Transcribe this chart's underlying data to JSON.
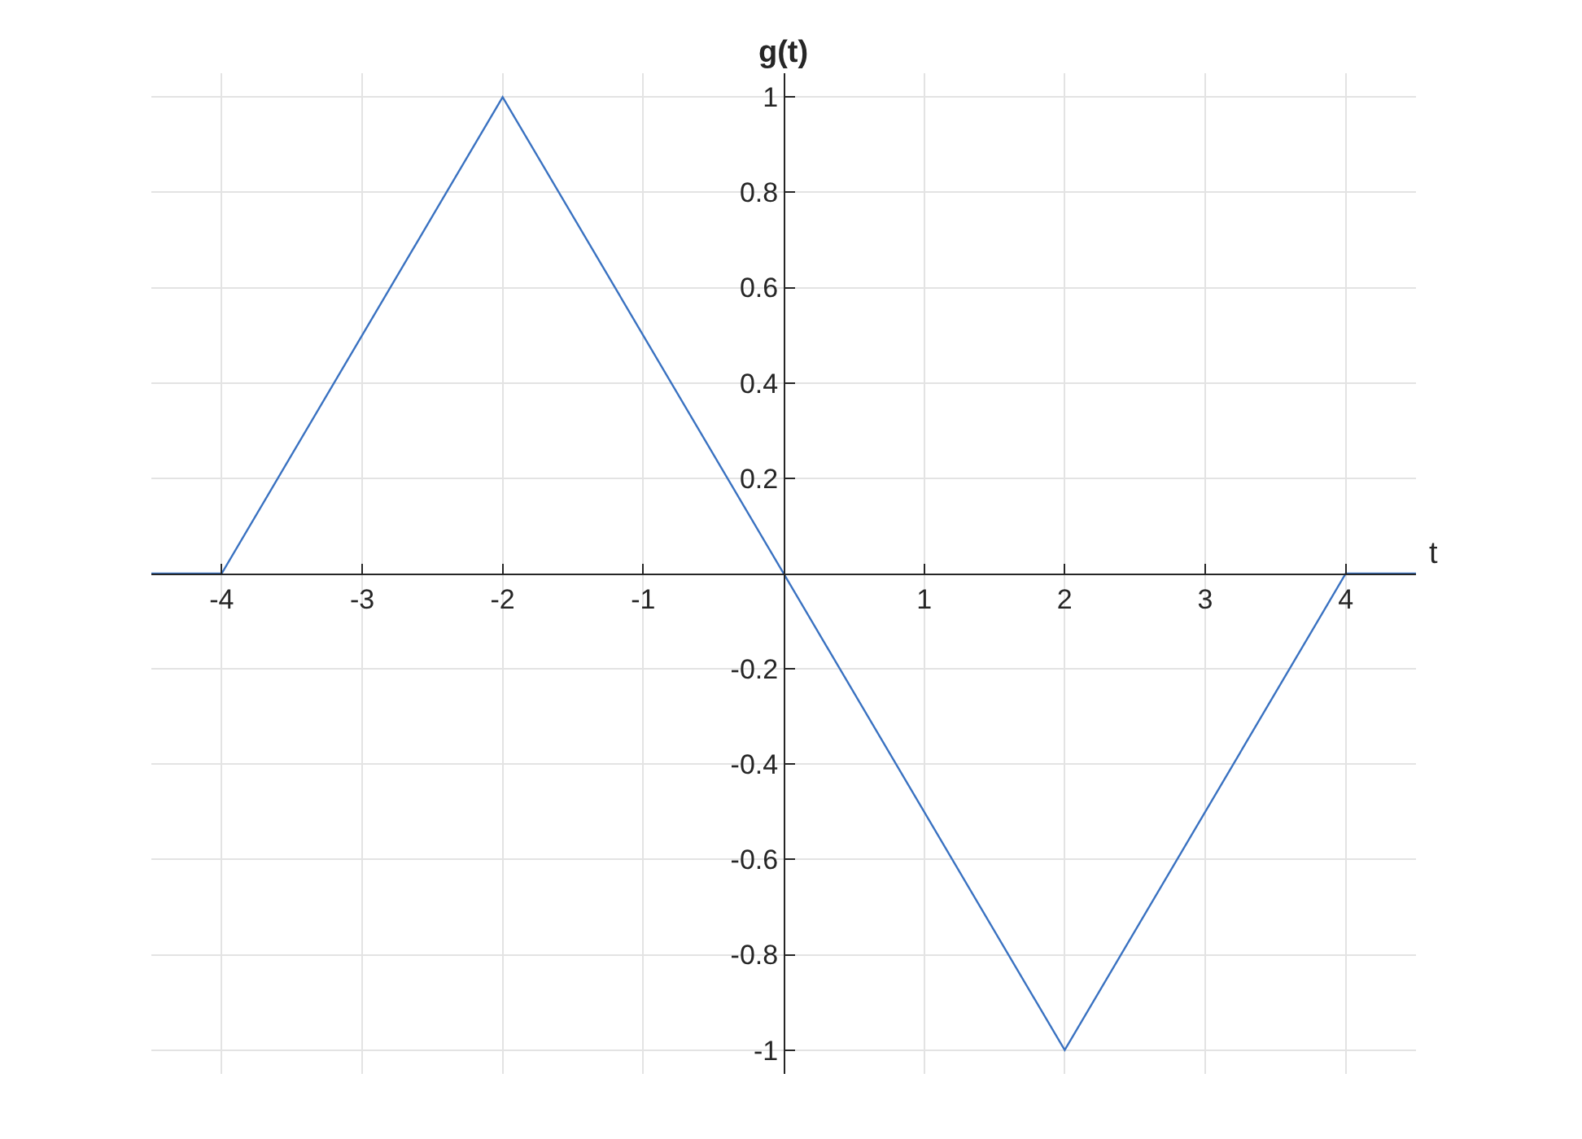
{
  "chart_data": {
    "type": "line",
    "xlabel": "t",
    "ylabel": "g(t)",
    "x": [
      -4.5,
      -4,
      -2,
      2,
      4,
      4.5
    ],
    "series": [
      {
        "color": "#3a72c1",
        "values": [
          0,
          0,
          1,
          -1,
          0,
          0
        ]
      }
    ],
    "xlim": [
      -4.5,
      4.5
    ],
    "ylim": [
      -1.05,
      1.05
    ],
    "xticks": [
      -4,
      -3,
      -2,
      -1,
      1,
      2,
      3,
      4
    ],
    "yticks": [
      -1,
      -0.8,
      -0.6,
      -0.4,
      -0.2,
      0.2,
      0.4,
      0.6,
      0.8,
      1
    ],
    "grid": true,
    "marker": "none",
    "line_style": "solid"
  }
}
